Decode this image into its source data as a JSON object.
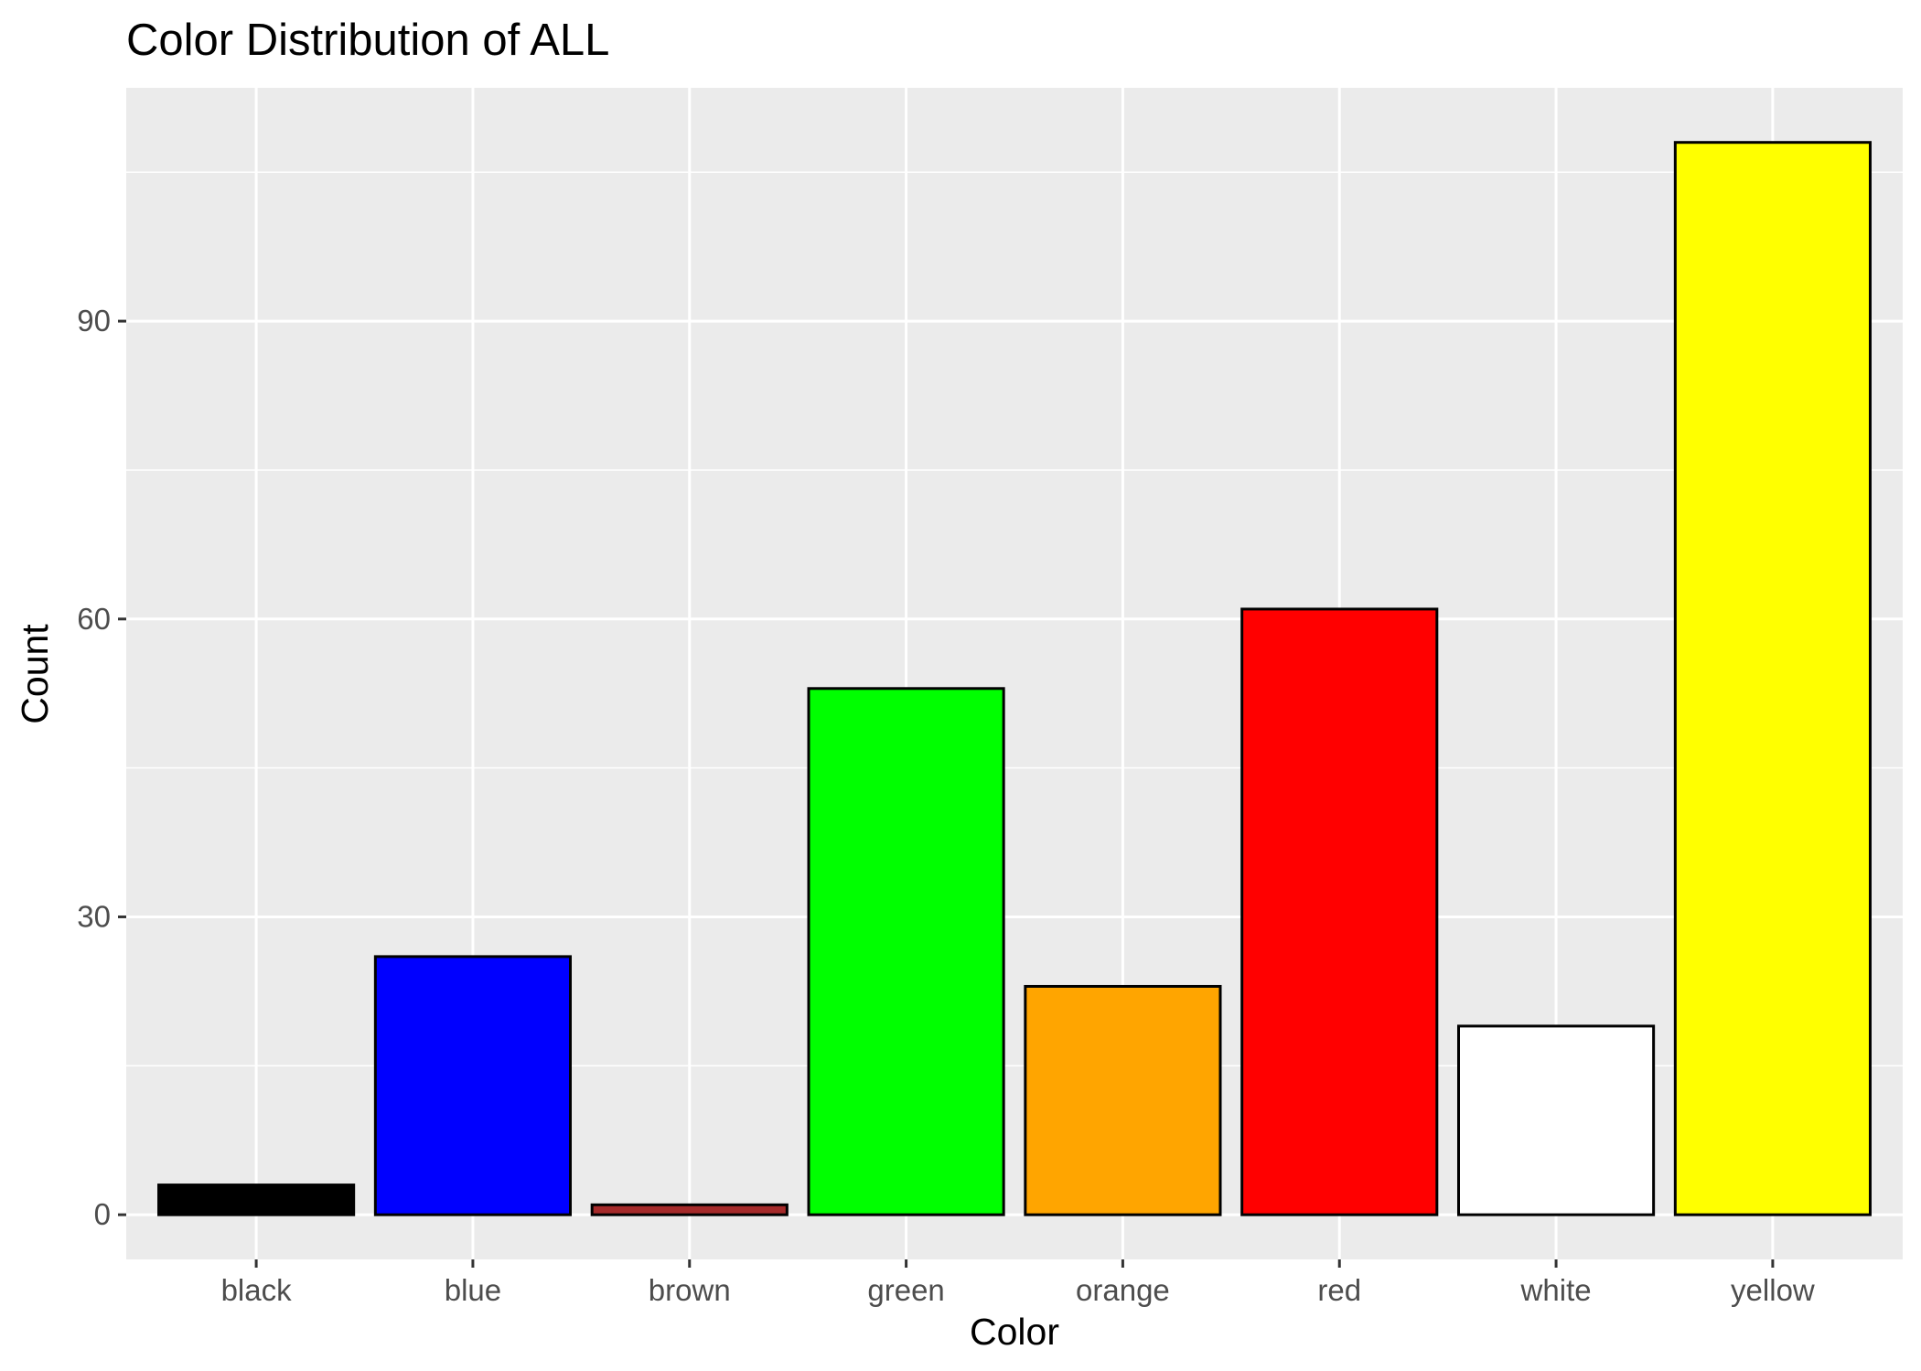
{
  "chart_data": {
    "type": "bar",
    "title": "Color Distribution of ALL",
    "xlabel": "Color",
    "ylabel": "Count",
    "categories": [
      "black",
      "blue",
      "brown",
      "green",
      "orange",
      "red",
      "white",
      "yellow"
    ],
    "values": [
      3,
      26,
      1,
      53,
      23,
      61,
      19,
      108
    ],
    "bar_colors": [
      "#000000",
      "#0000ff",
      "#a52a2a",
      "#00ff00",
      "#ffa500",
      "#ff0000",
      "#ffffff",
      "#ffff00"
    ],
    "bar_outline_color": "#000000",
    "ylim": [
      -4.5,
      113.5
    ],
    "yticks": [
      0,
      30,
      60,
      90
    ],
    "grid": true,
    "legend": "none",
    "panel_background": "#ebebeb",
    "grid_color": "#ffffff",
    "tick_label_color": "#4d4d4d"
  }
}
